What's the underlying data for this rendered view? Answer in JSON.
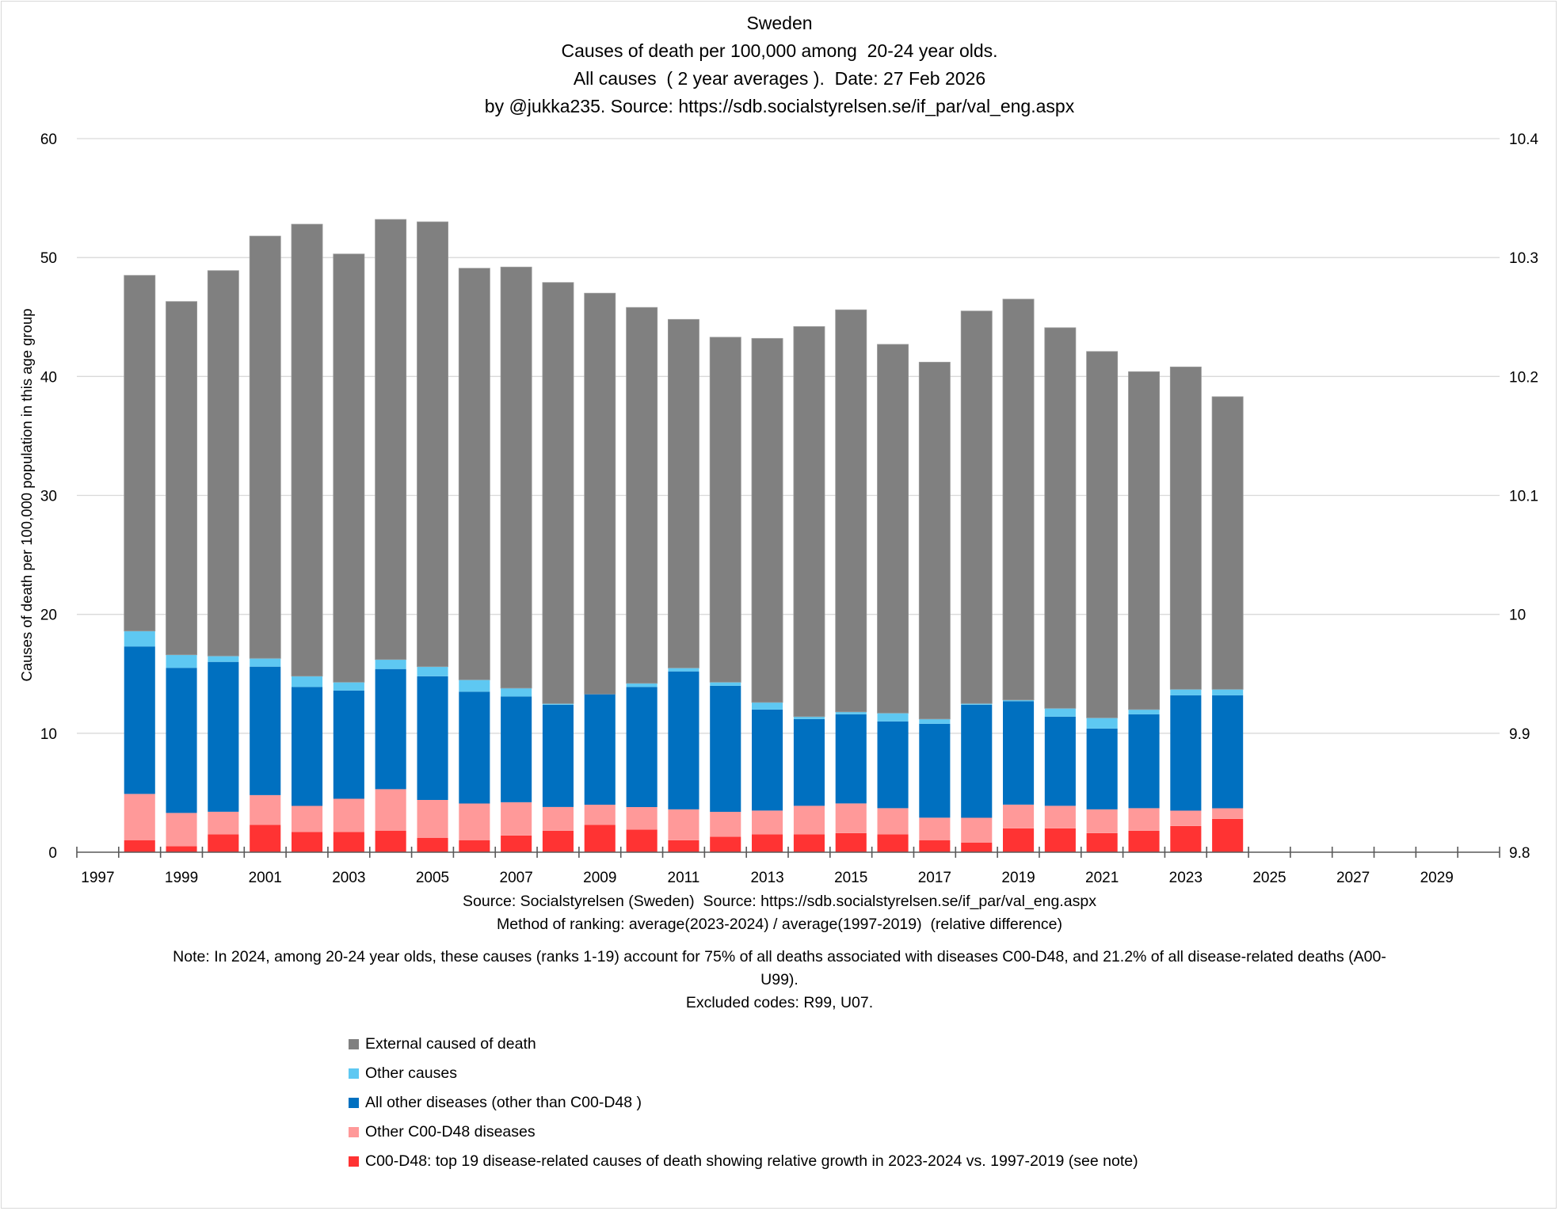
{
  "title": {
    "line1": "Sweden",
    "line2": "Causes of death per 100,000 among  20-24 year olds.",
    "line3": "All causes  ( 2 year averages ).  Date: 27 Feb 2026",
    "line4": "by @jukka235. Source: https://sdb.socialstyrelsen.se/if_par/val_eng.aspx"
  },
  "footer": {
    "source": "Source: Socialstyrelsen (Sweden)  Source: https://sdb.socialstyrelsen.se/if_par/val_eng.aspx",
    "method": "Method of ranking: average(2023-2024) / average(1997-2019)  (relative difference)",
    "note": "Note: In 2024, among  20-24 year olds, these causes (ranks 1-19) account for 75% of all deaths associated with diseases C00-D48, and 21.2% of all disease-related deaths (A00-U99).",
    "excluded": "Excluded codes: R99, U07."
  },
  "chart_data": {
    "type": "bar",
    "stacked": true,
    "title": "Sweden — Causes of death per 100,000 among 20-24 year olds. All causes (2 year averages)",
    "xlabel": "",
    "ylabel": "Causes of death per 100,000 population in this age group",
    "ylim": [
      0,
      60
    ],
    "yticks": [
      "0",
      "10",
      "20",
      "30",
      "40",
      "50",
      "60"
    ],
    "y2lim": [
      9.8,
      10.4
    ],
    "y2ticks": [
      "9.8",
      "9.9",
      "10",
      "10.1",
      "10.2",
      "10.3",
      "10.4"
    ],
    "xaxis_range": [
      1997,
      2030
    ],
    "xtick_labels": [
      "1997",
      "1999",
      "2001",
      "2003",
      "2005",
      "2007",
      "2009",
      "2011",
      "2013",
      "2015",
      "2017",
      "2019",
      "2021",
      "2023",
      "2025",
      "2027",
      "2029"
    ],
    "grid": true,
    "legend_position": "bottom",
    "categories": [
      1998,
      1999,
      2000,
      2001,
      2002,
      2003,
      2004,
      2005,
      2006,
      2007,
      2008,
      2009,
      2010,
      2011,
      2012,
      2013,
      2014,
      2015,
      2016,
      2017,
      2018,
      2019,
      2020,
      2021,
      2022,
      2023,
      2024
    ],
    "series": [
      {
        "name": "C00-D48: top 19 disease-related causes of death showing relative growth in 2023-2024 vs. 1997-2019 (see note)",
        "color": "#ff3333",
        "values": [
          1.0,
          0.5,
          1.5,
          2.3,
          1.7,
          1.7,
          1.8,
          1.2,
          1.0,
          1.4,
          1.8,
          2.3,
          1.9,
          1.0,
          1.3,
          1.5,
          1.5,
          1.6,
          1.5,
          1.0,
          0.8,
          2.0,
          2.0,
          1.6,
          1.8,
          2.2,
          2.8
        ]
      },
      {
        "name": "Other C00-D48 diseases",
        "color": "#ff9999",
        "values": [
          3.9,
          2.8,
          1.9,
          2.5,
          2.2,
          2.8,
          3.5,
          3.2,
          3.1,
          2.8,
          2.0,
          1.7,
          1.9,
          2.6,
          2.1,
          2.0,
          2.4,
          2.5,
          2.2,
          1.9,
          2.1,
          2.0,
          1.9,
          2.0,
          1.9,
          1.3,
          0.9
        ]
      },
      {
        "name": "All other diseases (other than C00-D48 )",
        "color": "#0070c0",
        "values": [
          12.4,
          12.2,
          12.6,
          10.8,
          10.0,
          9.1,
          10.1,
          10.4,
          9.4,
          8.9,
          8.6,
          9.3,
          10.1,
          11.6,
          10.6,
          8.5,
          7.3,
          7.5,
          7.3,
          7.9,
          9.5,
          8.7,
          7.5,
          6.8,
          7.9,
          9.7,
          9.5
        ]
      },
      {
        "name": "Other causes",
        "color": "#5ec8f2",
        "values": [
          1.3,
          1.1,
          0.5,
          0.7,
          0.9,
          0.7,
          0.8,
          0.8,
          1.0,
          0.7,
          0.1,
          0.0,
          0.3,
          0.3,
          0.3,
          0.6,
          0.2,
          0.2,
          0.7,
          0.4,
          0.1,
          0.1,
          0.7,
          0.9,
          0.4,
          0.5,
          0.5
        ]
      },
      {
        "name": "External caused of death",
        "color": "#808080",
        "values": [
          29.9,
          29.7,
          32.4,
          35.5,
          38.0,
          36.0,
          37.0,
          37.4,
          34.6,
          35.4,
          35.4,
          33.7,
          31.6,
          29.3,
          29.0,
          30.6,
          32.8,
          33.8,
          31.0,
          30.0,
          33.0,
          33.7,
          32.0,
          30.8,
          28.4,
          27.1,
          24.6
        ]
      }
    ],
    "totals": [
      48.5,
      46.3,
      48.9,
      51.8,
      52.8,
      50.3,
      53.2,
      53.0,
      49.1,
      49.2,
      47.9,
      47.0,
      45.8,
      44.8,
      43.3,
      43.2,
      44.2,
      45.6,
      42.7,
      41.2,
      45.5,
      46.5,
      44.1,
      42.1,
      40.4,
      40.8,
      38.3
    ],
    "legend_order": [
      "External caused of death",
      "Other causes",
      "All other diseases (other than C00-D48 )",
      "Other C00-D48 diseases",
      "C00-D48: top 19 disease-related causes of death showing relative growth in 2023-2024 vs. 1997-2019 (see note)"
    ]
  }
}
